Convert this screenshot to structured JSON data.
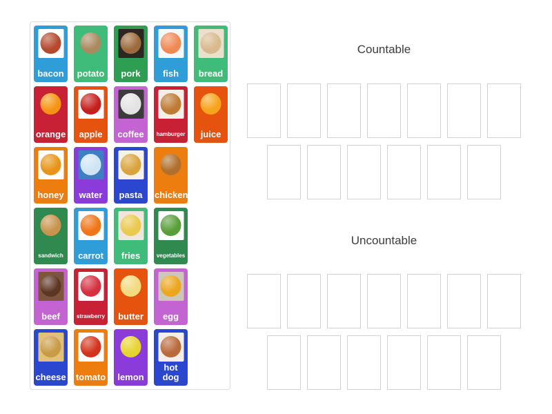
{
  "groups": [
    {
      "label": "Countable",
      "slot_rows": [
        7,
        6
      ]
    },
    {
      "label": "Uncountable",
      "slot_rows": [
        7,
        6
      ]
    }
  ],
  "tray": {
    "rows": [
      [
        {
          "label": "bacon",
          "card_color": "#2e9dd8",
          "photo_bg": "#ffffff",
          "food_color": "#b5492f",
          "text_size": "normal"
        },
        {
          "label": "potato",
          "card_color": "#3fbc79",
          "photo_bg": "transparent",
          "food_color": "#ab8a60",
          "text_size": "normal"
        },
        {
          "label": "pork",
          "card_color": "#2e9e52",
          "photo_bg": "#2b2723",
          "food_color": "#9c6b3d",
          "text_size": "normal"
        },
        {
          "label": "fish",
          "card_color": "#2e9dd8",
          "photo_bg": "#f3f8f8",
          "food_color": "#ef8a57",
          "text_size": "normal"
        },
        {
          "label": "bread",
          "card_color": "#3fbc79",
          "photo_bg": "#e9e0cd",
          "food_color": "#d8ba8d",
          "text_size": "normal"
        }
      ],
      [
        {
          "label": "orange",
          "card_color": "#c82136",
          "photo_bg": "transparent",
          "food_color": "#f59414",
          "text_size": "normal"
        },
        {
          "label": "apple",
          "card_color": "#e5530f",
          "photo_bg": "#ffffff",
          "food_color": "#c6201e",
          "text_size": "normal"
        },
        {
          "label": "coffee",
          "card_color": "#c463d2",
          "photo_bg": "#3b3b3b",
          "food_color": "#e3e3e3",
          "text_size": "normal"
        },
        {
          "label": "hamburger",
          "card_color": "#c82136",
          "photo_bg": "#f4efe8",
          "food_color": "#bf7a33",
          "text_size": "small"
        },
        {
          "label": "juice",
          "card_color": "#e5530f",
          "photo_bg": "transparent",
          "food_color": "#f6a41c",
          "text_size": "normal"
        }
      ],
      [
        {
          "label": "honey",
          "card_color": "#ee7d10",
          "photo_bg": "#ffffff",
          "food_color": "#e89418",
          "text_size": "normal"
        },
        {
          "label": "water",
          "card_color": "#8b3bd9",
          "photo_bg": "#3e7ec2",
          "food_color": "#cfe4f4",
          "text_size": "normal"
        },
        {
          "label": "pasta",
          "card_color": "#2b46cf",
          "photo_bg": "#f6f1ea",
          "food_color": "#d9a43e",
          "text_size": "normal"
        },
        {
          "label": "chicken",
          "card_color": "#ee7d10",
          "photo_bg": "transparent",
          "food_color": "#b06f2c",
          "text_size": "normal"
        }
      ],
      [
        {
          "label": "sandwich",
          "card_color": "#30894e",
          "photo_bg": "transparent",
          "food_color": "#c8934e",
          "text_size": "small"
        },
        {
          "label": "carrot",
          "card_color": "#2e9dd8",
          "photo_bg": "#ffffff",
          "food_color": "#f07418",
          "text_size": "normal"
        },
        {
          "label": "fries",
          "card_color": "#3fbc79",
          "photo_bg": "#efe7dd",
          "food_color": "#e9c94e",
          "text_size": "normal"
        },
        {
          "label": "vegetables",
          "card_color": "#30894e",
          "photo_bg": "#ffffff",
          "food_color": "#5a9e3a",
          "text_size": "small"
        }
      ],
      [
        {
          "label": "beef",
          "card_color": "#c463d2",
          "photo_bg": "#7c553c",
          "food_color": "#5d3524",
          "text_size": "normal"
        },
        {
          "label": "strawberry",
          "card_color": "#c82136",
          "photo_bg": "#ffffff",
          "food_color": "#d62f3f",
          "text_size": "small"
        },
        {
          "label": "butter",
          "card_color": "#e5530f",
          "photo_bg": "transparent",
          "food_color": "#f2da7e",
          "text_size": "normal"
        },
        {
          "label": "egg",
          "card_color": "#c463d2",
          "photo_bg": "#cdc6ba",
          "food_color": "#eca51d",
          "text_size": "normal"
        }
      ],
      [
        {
          "label": "cheese",
          "card_color": "#2b46cf",
          "photo_bg": "#e3c07a",
          "food_color": "#c89b45",
          "text_size": "normal"
        },
        {
          "label": "tomato",
          "card_color": "#ee7d10",
          "photo_bg": "#ffffff",
          "food_color": "#d3321c",
          "text_size": "normal"
        },
        {
          "label": "lemon",
          "card_color": "#8b3bd9",
          "photo_bg": "transparent",
          "food_color": "#e6d42e",
          "text_size": "normal"
        },
        {
          "label": "hot dog",
          "card_color": "#2b46cf",
          "photo_bg": "#f3eee7",
          "food_color": "#b9693a",
          "text_size": "normal"
        }
      ]
    ]
  },
  "colors": {
    "page_bg": "#ffffff",
    "panel_border": "#dcdcdc",
    "slot_border": "#d2d2d2",
    "title_text": "#3c3c3c",
    "card_label_text": "#ffffff"
  }
}
